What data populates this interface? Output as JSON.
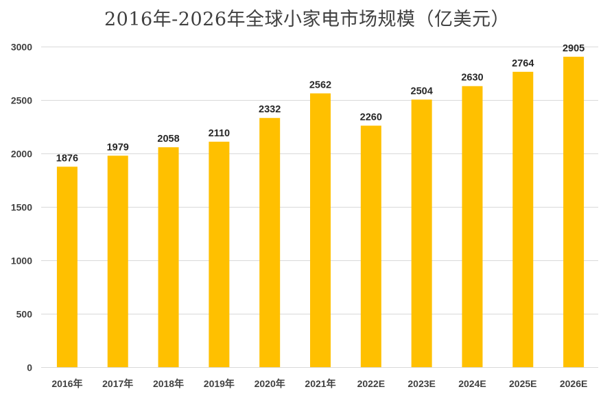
{
  "chart_data": {
    "type": "bar",
    "title": "2016年-2026年全球小家电市场规模（亿美元）",
    "xlabel": "",
    "ylabel": "",
    "categories": [
      "2016年",
      "2017年",
      "2018年",
      "2019年",
      "2020年",
      "2021年",
      "2022E",
      "2023E",
      "2024E",
      "2025E",
      "2026E"
    ],
    "values": [
      1876,
      1979,
      2058,
      2110,
      2332,
      2562,
      2260,
      2504,
      2630,
      2764,
      2905
    ],
    "ylim": [
      0,
      3000
    ],
    "yticks": [
      0,
      500,
      1000,
      1500,
      2000,
      2500,
      3000
    ],
    "grid": true,
    "legend": "none",
    "bar_color": "#FFC000"
  }
}
